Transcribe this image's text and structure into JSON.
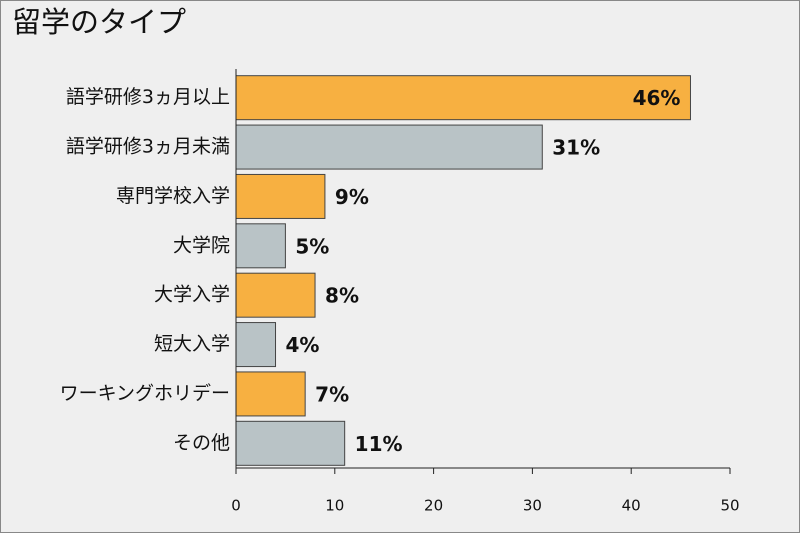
{
  "chart_data": {
    "type": "barh",
    "title": "留学のタイプ",
    "categories": [
      "語学研修3ヵ月以上",
      "語学研修3ヵ月未満",
      "専門学校入学",
      "大学院",
      "大学入学",
      "短大入学",
      "ワーキングホリデー",
      "その他"
    ],
    "values": [
      46,
      31,
      9,
      5,
      8,
      4,
      7,
      11
    ],
    "value_labels": [
      "46%",
      "31%",
      "9%",
      "5%",
      "8%",
      "4%",
      "7%",
      "11%"
    ],
    "colors": [
      "#f7b041",
      "#b9c3c6",
      "#f7b041",
      "#b9c3c6",
      "#f7b041",
      "#b9c3c6",
      "#f7b041",
      "#b9c3c6"
    ],
    "xlim": [
      0,
      50
    ],
    "xticks": [
      0,
      10,
      20,
      30,
      40,
      50
    ],
    "grid": false
  }
}
